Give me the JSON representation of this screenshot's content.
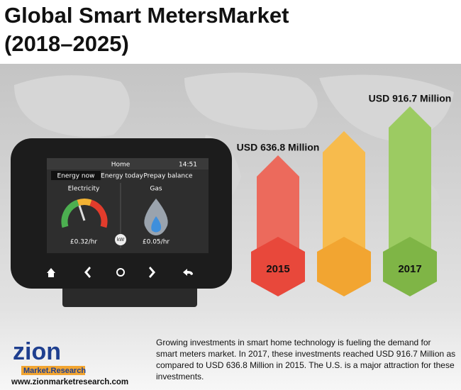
{
  "title_lines": [
    "Global Smart MetersMarket",
    "(2018–2025)"
  ],
  "chart_data": {
    "type": "bar",
    "categories": [
      "2015",
      null,
      "2017"
    ],
    "values": [
      636.8,
      775,
      916.7
    ],
    "value_labels": [
      "USD 636.8 Million",
      null,
      "USD 916.7 Million"
    ],
    "colors": [
      "#ec6a5c",
      "#f7bb4d",
      "#9ccb62"
    ],
    "base_colors": [
      "#e8483b",
      "#f2a531",
      "#7fb546"
    ]
  },
  "device": {
    "header": "Home",
    "time": "14:51",
    "tabs": [
      "Energy now",
      "Energy today",
      "Prepay balance"
    ],
    "electricity": "Electricity",
    "gas": "Gas",
    "electricity_rate": "£0.32/hr",
    "gas_rate": "£0.05/hr",
    "unit": "kW"
  },
  "description_lines": [
    "Growing investments in smart home technology is fueling the demand for",
    "smart meters market. In 2017, these investments reached USD 916.7 Million as",
    "compared to USD 636.8 Million in 2015. The U.S. is a major attraction for these",
    "investments."
  ],
  "logo": {
    "name": "zion",
    "tagline": "Market.Research",
    "url": "www.zionmarketresearch.com"
  }
}
